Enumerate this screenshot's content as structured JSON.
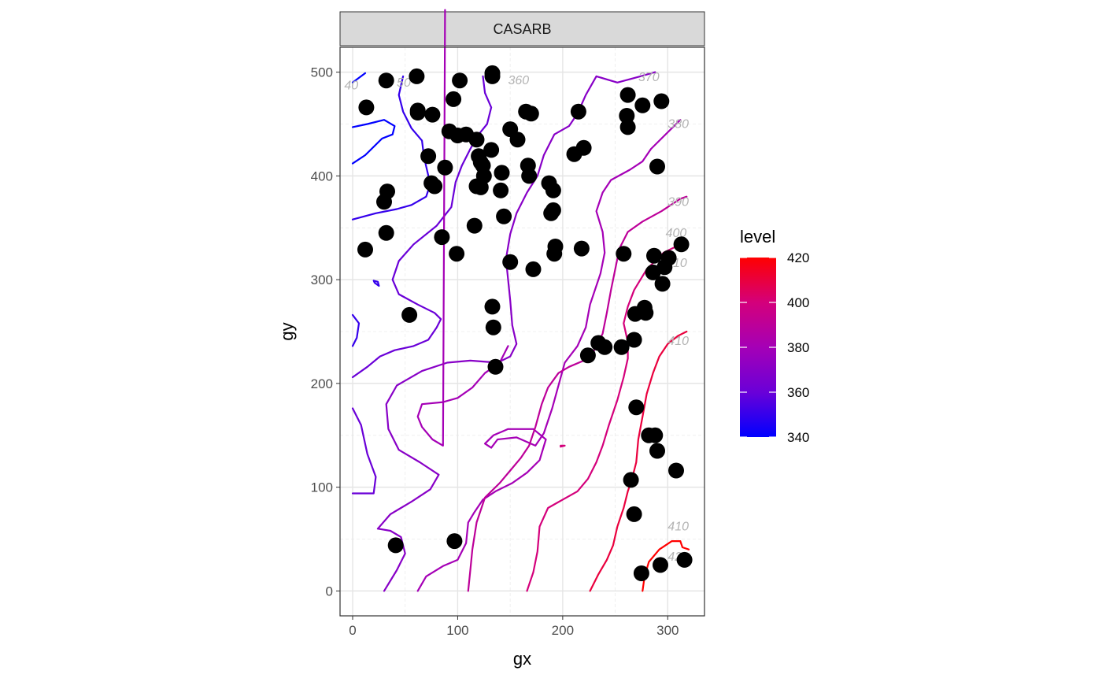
{
  "chart_data": {
    "type": "scatter",
    "facet_label": "CASARB",
    "xlabel": "gx",
    "ylabel": "gy",
    "xlim": [
      -12,
      335
    ],
    "ylim": [
      -24,
      524
    ],
    "x_ticks": [
      0,
      100,
      200,
      300
    ],
    "y_ticks": [
      0,
      100,
      200,
      300,
      400,
      500
    ],
    "grid": true,
    "legend": {
      "title": "level",
      "position": "right",
      "min": 340,
      "max": 420,
      "ticks": [
        340,
        360,
        380,
        400,
        420
      ],
      "low_color": "#0000FF",
      "high_color": "#FF0000"
    },
    "points": {
      "x": [
        13,
        32,
        33,
        30,
        32,
        12,
        41,
        54,
        61,
        62,
        62,
        76,
        75,
        78,
        72,
        85,
        88,
        96,
        99,
        100,
        102,
        92,
        108,
        118,
        120,
        122,
        125,
        124,
        132,
        118,
        116,
        122,
        133,
        133,
        133,
        142,
        141,
        144,
        150,
        150,
        157,
        165,
        167,
        170,
        168,
        187,
        191,
        189,
        191,
        193,
        192,
        172,
        215,
        211,
        220,
        218,
        224,
        234,
        240,
        256,
        262,
        261,
        262,
        276,
        294,
        290,
        295,
        297,
        301,
        313,
        287,
        286,
        278,
        279,
        269,
        268,
        258,
        270,
        282,
        288,
        290,
        308,
        265,
        268,
        275,
        293,
        316,
        97,
        136,
        134
      ],
      "y": [
        466,
        492,
        385,
        375,
        345,
        329,
        44,
        266,
        496,
        461,
        463,
        459,
        393,
        390,
        419,
        341,
        408,
        474,
        325,
        439,
        492,
        443,
        440,
        435,
        419,
        413,
        400,
        410,
        425,
        390,
        352,
        389,
        499,
        496,
        274,
        403,
        386,
        361,
        445,
        317,
        435,
        462,
        410,
        460,
        400,
        393,
        386,
        364,
        367,
        332,
        325,
        310,
        462,
        421,
        427,
        330,
        227,
        239,
        235,
        235,
        478,
        458,
        447,
        468,
        472,
        409,
        296,
        312,
        321,
        334,
        323,
        307,
        273,
        268,
        267,
        242,
        325,
        177,
        150,
        150,
        135,
        116,
        107,
        74,
        17,
        25,
        30,
        48,
        216,
        254
      ]
    },
    "contour_levels": [
      340,
      350,
      360,
      370,
      380,
      390,
      400,
      410,
      420
    ],
    "contour_labels": [
      "40",
      "50",
      "360",
      "370",
      "380",
      "390",
      "400",
      "10",
      "410",
      "410",
      "42"
    ]
  }
}
